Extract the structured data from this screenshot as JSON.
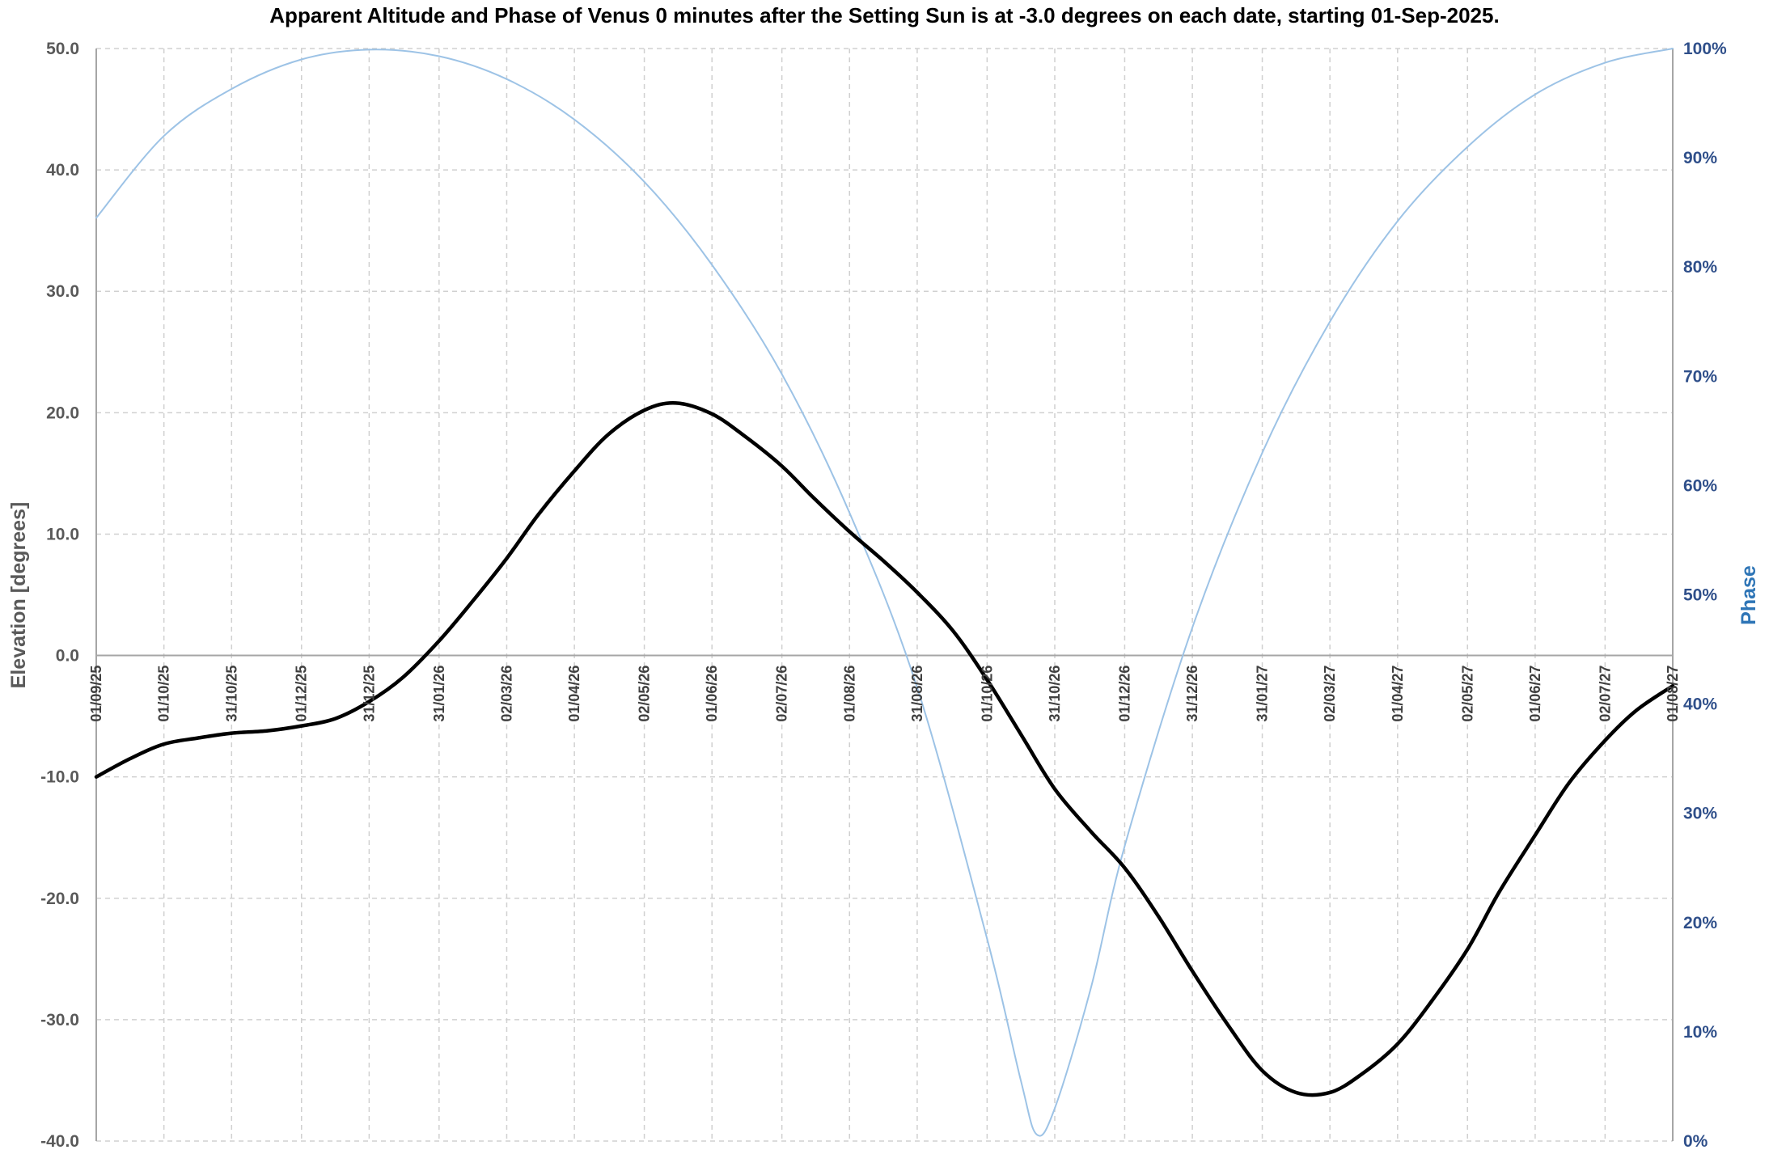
{
  "chart_data": {
    "type": "line",
    "title": "Apparent Altitude and Phase of Venus 0 minutes after the Setting Sun is at -3.0 degrees on each date, starting 01-Sep-2025.",
    "ylabel": "Elevation [degrees]",
    "y2label": "Phase",
    "ylim": [
      -40,
      50
    ],
    "y2lim": [
      0,
      100
    ],
    "yticks": [
      "50.0",
      "40.0",
      "30.0",
      "20.0",
      "10.0",
      "0.0",
      "-10.0",
      "-20.0",
      "-30.0",
      "-40.0"
    ],
    "y2ticks": [
      "100%",
      "90%",
      "80%",
      "70%",
      "60%",
      "50%",
      "40%",
      "30%",
      "20%",
      "10%",
      "0%"
    ],
    "xticks": [
      "01/09/25",
      "01/10/25",
      "31/10/25",
      "01/12/25",
      "31/12/25",
      "31/01/26",
      "02/03/26",
      "01/04/26",
      "02/05/26",
      "01/06/26",
      "02/07/26",
      "01/08/26",
      "31/08/26",
      "01/10/26",
      "31/10/26",
      "01/12/26",
      "31/12/26",
      "31/01/27",
      "02/03/27",
      "01/04/27",
      "02/05/27",
      "01/06/27",
      "02/07/27",
      "01/08/27"
    ],
    "grid": true,
    "series": [
      {
        "axis": "left",
        "color": "#000000",
        "points": [
          [
            "01/09/25",
            -10.0
          ],
          [
            "16/09/25",
            -8.5
          ],
          [
            "01/10/25",
            -7.3
          ],
          [
            "16/10/25",
            -6.8
          ],
          [
            "31/10/25",
            -6.4
          ],
          [
            "16/11/25",
            -6.2
          ],
          [
            "01/12/25",
            -5.8
          ],
          [
            "16/12/25",
            -5.2
          ],
          [
            "31/12/25",
            -3.8
          ],
          [
            "15/01/26",
            -1.8
          ],
          [
            "31/01/26",
            1.2
          ],
          [
            "15/02/26",
            4.5
          ],
          [
            "02/03/26",
            8.0
          ],
          [
            "16/03/26",
            11.6
          ],
          [
            "01/04/26",
            15.2
          ],
          [
            "16/04/26",
            18.2
          ],
          [
            "02/05/26",
            20.2
          ],
          [
            "16/05/26",
            20.8
          ],
          [
            "01/06/26",
            19.9
          ],
          [
            "16/06/26",
            18.0
          ],
          [
            "02/07/26",
            15.6
          ],
          [
            "16/07/26",
            13.0
          ],
          [
            "01/08/26",
            10.2
          ],
          [
            "16/08/26",
            7.8
          ],
          [
            "31/08/26",
            5.2
          ],
          [
            "16/09/26",
            2.0
          ],
          [
            "01/10/26",
            -2.0
          ],
          [
            "16/10/26",
            -6.5
          ],
          [
            "31/10/26",
            -11.0
          ],
          [
            "16/11/26",
            -14.5
          ],
          [
            "01/12/26",
            -17.5
          ],
          [
            "16/12/26",
            -21.5
          ],
          [
            "31/12/26",
            -26.0
          ],
          [
            "16/01/27",
            -30.5
          ],
          [
            "31/01/27",
            -34.2
          ],
          [
            "15/02/27",
            -36.0
          ],
          [
            "02/03/27",
            -36.0
          ],
          [
            "16/03/27",
            -34.5
          ],
          [
            "01/04/27",
            -32.0
          ],
          [
            "16/04/27",
            -28.5
          ],
          [
            "02/05/27",
            -24.2
          ],
          [
            "16/05/27",
            -19.5
          ],
          [
            "01/06/27",
            -14.8
          ],
          [
            "16/06/27",
            -10.5
          ],
          [
            "02/07/27",
            -7.0
          ],
          [
            "16/07/27",
            -4.5
          ],
          [
            "01/08/27",
            -2.5
          ]
        ]
      },
      {
        "axis": "right",
        "color": "#9dc3e6",
        "points": [
          [
            "01/09/25",
            84.5
          ],
          [
            "01/10/25",
            92.0
          ],
          [
            "31/10/25",
            96.3
          ],
          [
            "01/12/25",
            99.0
          ],
          [
            "31/12/25",
            99.9
          ],
          [
            "31/01/26",
            99.3
          ],
          [
            "02/03/26",
            97.2
          ],
          [
            "01/04/26",
            93.5
          ],
          [
            "02/05/26",
            87.8
          ],
          [
            "01/06/26",
            80.2
          ],
          [
            "02/07/26",
            70.2
          ],
          [
            "01/08/26",
            57.5
          ],
          [
            "31/08/26",
            41.5
          ],
          [
            "01/10/26",
            18.5
          ],
          [
            "16/10/26",
            5.5
          ],
          [
            "23/10/26",
            0.6
          ],
          [
            "31/10/26",
            3.0
          ],
          [
            "16/11/26",
            14.0
          ],
          [
            "01/12/26",
            27.0
          ],
          [
            "31/12/26",
            47.0
          ],
          [
            "31/01/27",
            63.0
          ],
          [
            "02/03/27",
            75.0
          ],
          [
            "01/04/27",
            84.2
          ],
          [
            "02/05/27",
            91.0
          ],
          [
            "01/06/27",
            95.8
          ],
          [
            "02/07/27",
            98.7
          ],
          [
            "01/08/27",
            100.0
          ]
        ]
      }
    ]
  }
}
